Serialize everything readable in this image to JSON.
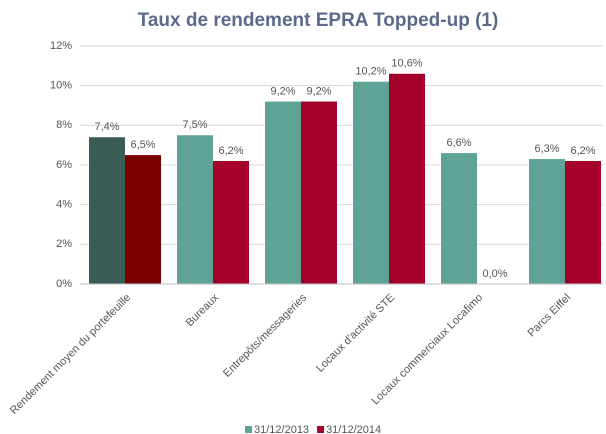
{
  "chart_data": {
    "type": "bar",
    "title": "Taux de rendement EPRA Topped-up (1)",
    "categories": [
      "Rendement moyen du portefeuille",
      "Bureaux",
      "Entrepôts/messageries",
      "Locaux d'activité STE",
      "Locaux commerciaux Locafimo",
      "Parcs Eiffel"
    ],
    "series": [
      {
        "name": "31/12/2013",
        "color": "#5fa396",
        "colors": [
          "#3b5b56",
          "#5fa396",
          "#5fa396",
          "#5fa396",
          "#5fa396",
          "#5fa396"
        ],
        "values": [
          7.4,
          7.5,
          9.2,
          10.2,
          6.6,
          6.3
        ],
        "value_labels": [
          "7,4%",
          "7,5%",
          "9,2%",
          "10,2%",
          "6,6%",
          "6,3%"
        ]
      },
      {
        "name": "31/12/2014",
        "color": "#a3002a",
        "colors": [
          "#7a0000",
          "#a3002a",
          "#a3002a",
          "#a3002a",
          "#a3002a",
          "#a3002a"
        ],
        "values": [
          6.5,
          6.2,
          9.2,
          10.6,
          0.0,
          6.2
        ],
        "value_labels": [
          "6,5%",
          "6,2%",
          "9,2%",
          "10,6%",
          "0,0%",
          "6,2%"
        ]
      }
    ],
    "ylim": [
      0,
      12
    ],
    "yticks": [
      {
        "value": 0,
        "label": "0%"
      },
      {
        "value": 2,
        "label": "2%"
      },
      {
        "value": 4,
        "label": "4%"
      },
      {
        "value": 6,
        "label": "6%"
      },
      {
        "value": 8,
        "label": "8%"
      },
      {
        "value": 10,
        "label": "10%"
      },
      {
        "value": 12,
        "label": "12%"
      }
    ],
    "grid": true,
    "legend": "bottom"
  }
}
